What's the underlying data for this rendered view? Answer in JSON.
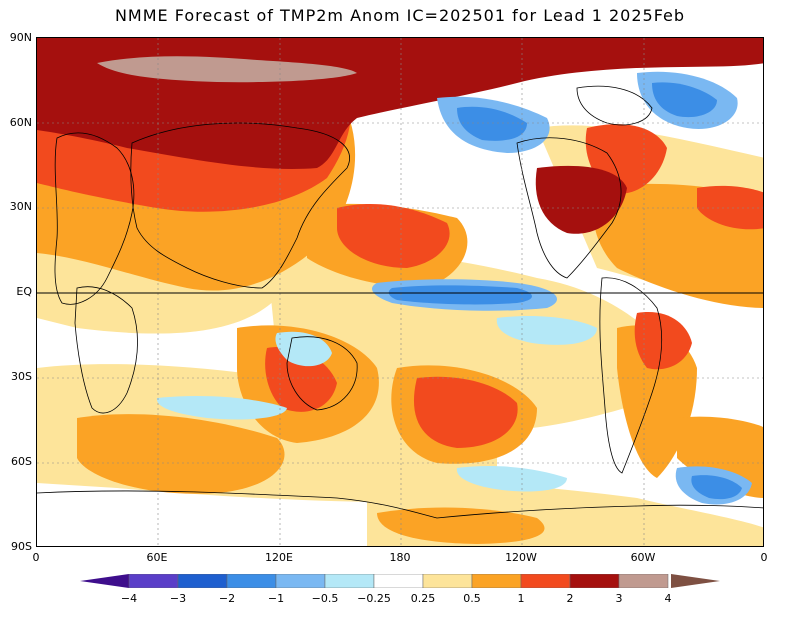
{
  "title": "NMME Forecast of TMP2m Anom IC=202501 for Lead 1 2025Feb",
  "map": {
    "lat_labels": [
      "90N",
      "60N",
      "30N",
      "EQ",
      "30S",
      "60S",
      "90S"
    ],
    "lon_labels": [
      "0",
      "60E",
      "120E",
      "180",
      "120W",
      "60W",
      "0"
    ],
    "colors": {
      "lt_-4": "#3e0e8c",
      "-4_-3": "#5a3ec8",
      "-3_-2": "#1e5fcf",
      "-2_-1": "#3c8ee6",
      "-1_-0.5": "#7ab8f2",
      "-0.5_-0.25": "#b4e8f7",
      "-0.25_0.25": "#ffffff",
      "0.25_0.5": "#fde49a",
      "0.5_1": "#fba325",
      "1_2": "#f24a1e",
      "2_3": "#a5100e",
      "3_4": "#c09a90",
      "gt_4": "#7e5042"
    }
  },
  "colorbar": {
    "labels": [
      "−4",
      "−3",
      "−2",
      "−1",
      "−0.5",
      "−0.25",
      "0.25",
      "0.5",
      "1",
      "2",
      "3",
      "4"
    ],
    "segments": [
      {
        "color": "#5a3ec8"
      },
      {
        "color": "#1e5fcf"
      },
      {
        "color": "#3c8ee6"
      },
      {
        "color": "#7ab8f2"
      },
      {
        "color": "#b4e8f7"
      },
      {
        "color": "#ffffff"
      },
      {
        "color": "#fde49a"
      },
      {
        "color": "#fba325"
      },
      {
        "color": "#f24a1e"
      },
      {
        "color": "#a5100e"
      },
      {
        "color": "#c09a90"
      }
    ],
    "low_arrow_color": "#3e0e8c",
    "high_arrow_color": "#7e5042"
  }
}
